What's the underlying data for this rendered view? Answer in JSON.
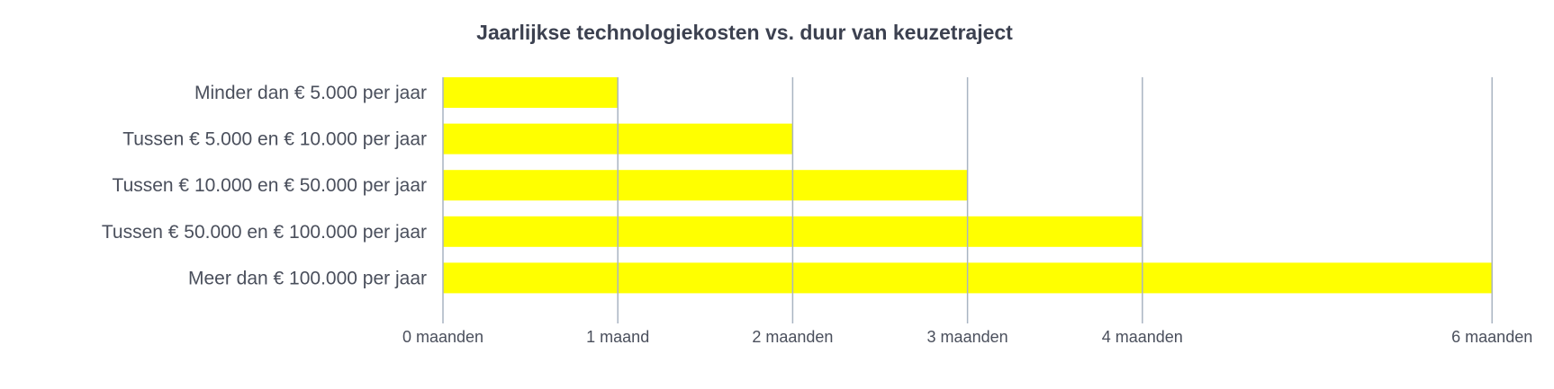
{
  "chart_data": {
    "type": "bar",
    "orientation": "horizontal",
    "title": "Jaarlijkse technologiekosten vs. duur van keuzetraject",
    "categories": [
      "Minder dan € 5.000 per jaar",
      "Tussen € 5.000 en € 10.000 per jaar",
      "Tussen € 10.000 en € 50.000 per jaar",
      "Tussen € 50.000 en € 100.000 per jaar",
      "Meer dan € 100.000 per jaar"
    ],
    "values": [
      1,
      2,
      3,
      4,
      6
    ],
    "xlabel": "",
    "ylabel": "",
    "xlim": [
      0,
      6
    ],
    "ticks": [
      {
        "value": 0,
        "label": "0 maanden"
      },
      {
        "value": 1,
        "label": "1 maand"
      },
      {
        "value": 2,
        "label": "2 maanden"
      },
      {
        "value": 3,
        "label": "3 maanden"
      },
      {
        "value": 4,
        "label": "4 maanden"
      },
      {
        "value": 6,
        "label": "6 maanden"
      }
    ],
    "grid": true,
    "legend": "none",
    "colors": {
      "bar": "#ffff00",
      "gridline": "#a9b4c2",
      "text": "#4a4f5c",
      "title": "#3c4150"
    }
  }
}
